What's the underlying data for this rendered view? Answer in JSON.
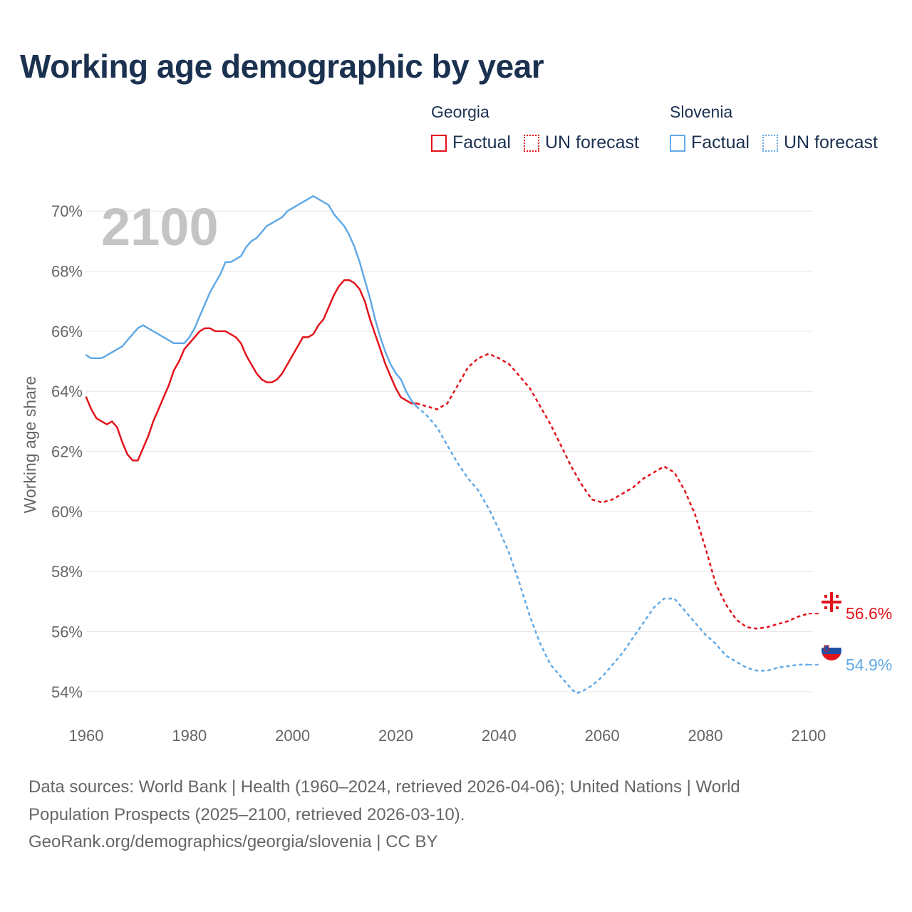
{
  "title": "Working age demographic by year",
  "legend": {
    "groups": [
      {
        "name": "Georgia",
        "color": "#e3131b",
        "items": [
          {
            "label": "Factual",
            "style": "solid"
          },
          {
            "label": "UN forecast",
            "style": "dotted"
          }
        ]
      },
      {
        "name": "Slovenia",
        "color": "#62a9e6",
        "items": [
          {
            "label": "Factual",
            "style": "solid"
          },
          {
            "label": "UN forecast",
            "style": "dotted"
          }
        ]
      }
    ]
  },
  "chart_data": {
    "type": "line",
    "title": "Working age demographic by year",
    "xlabel": "",
    "ylabel": "Working age share",
    "year_display": "2100",
    "xlim": [
      1960,
      2105
    ],
    "ylim": [
      53,
      71.5
    ],
    "x_ticks": [
      1960,
      1980,
      2000,
      2020,
      2040,
      2060,
      2080,
      2100
    ],
    "y_ticks": [
      54,
      56,
      58,
      60,
      62,
      64,
      66,
      68,
      70
    ],
    "y_tick_labels": [
      "54%",
      "56%",
      "58%",
      "60%",
      "62%",
      "64%",
      "66%",
      "68%",
      "70%"
    ],
    "grid": "horizontal",
    "factual_until": 2024,
    "series": [
      {
        "name": "Georgia",
        "color": "#e3131b",
        "end_label": "56.6%",
        "end_icon": "georgia-flag-icon",
        "points": [
          [
            1960,
            63.8
          ],
          [
            1961,
            63.4
          ],
          [
            1962,
            63.1
          ],
          [
            1963,
            63.0
          ],
          [
            1964,
            62.9
          ],
          [
            1965,
            63.0
          ],
          [
            1966,
            62.8
          ],
          [
            1967,
            62.3
          ],
          [
            1968,
            61.9
          ],
          [
            1969,
            61.7
          ],
          [
            1970,
            61.7
          ],
          [
            1971,
            62.1
          ],
          [
            1972,
            62.5
          ],
          [
            1973,
            63.0
          ],
          [
            1974,
            63.4
          ],
          [
            1975,
            63.8
          ],
          [
            1976,
            64.2
          ],
          [
            1977,
            64.7
          ],
          [
            1978,
            65.0
          ],
          [
            1979,
            65.4
          ],
          [
            1980,
            65.6
          ],
          [
            1981,
            65.8
          ],
          [
            1982,
            66.0
          ],
          [
            1983,
            66.1
          ],
          [
            1984,
            66.1
          ],
          [
            1985,
            66.0
          ],
          [
            1986,
            66.0
          ],
          [
            1987,
            66.0
          ],
          [
            1988,
            65.9
          ],
          [
            1989,
            65.8
          ],
          [
            1990,
            65.6
          ],
          [
            1991,
            65.2
          ],
          [
            1992,
            64.9
          ],
          [
            1993,
            64.6
          ],
          [
            1994,
            64.4
          ],
          [
            1995,
            64.3
          ],
          [
            1996,
            64.3
          ],
          [
            1997,
            64.4
          ],
          [
            1998,
            64.6
          ],
          [
            1999,
            64.9
          ],
          [
            2000,
            65.2
          ],
          [
            2001,
            65.5
          ],
          [
            2002,
            65.8
          ],
          [
            2003,
            65.8
          ],
          [
            2004,
            65.9
          ],
          [
            2005,
            66.2
          ],
          [
            2006,
            66.4
          ],
          [
            2007,
            66.8
          ],
          [
            2008,
            67.2
          ],
          [
            2009,
            67.5
          ],
          [
            2010,
            67.7
          ],
          [
            2011,
            67.7
          ],
          [
            2012,
            67.6
          ],
          [
            2013,
            67.4
          ],
          [
            2014,
            67.0
          ],
          [
            2015,
            66.4
          ],
          [
            2016,
            65.9
          ],
          [
            2017,
            65.4
          ],
          [
            2018,
            64.9
          ],
          [
            2019,
            64.5
          ],
          [
            2020,
            64.1
          ],
          [
            2021,
            63.8
          ],
          [
            2022,
            63.7
          ],
          [
            2023,
            63.6
          ],
          [
            2024,
            63.6
          ],
          [
            2026,
            63.5
          ],
          [
            2028,
            63.4
          ],
          [
            2030,
            63.6
          ],
          [
            2032,
            64.2
          ],
          [
            2034,
            64.8
          ],
          [
            2036,
            65.1
          ],
          [
            2038,
            65.25
          ],
          [
            2040,
            65.1
          ],
          [
            2042,
            64.9
          ],
          [
            2044,
            64.5
          ],
          [
            2046,
            64.1
          ],
          [
            2048,
            63.5
          ],
          [
            2050,
            62.9
          ],
          [
            2052,
            62.2
          ],
          [
            2054,
            61.5
          ],
          [
            2056,
            60.9
          ],
          [
            2058,
            60.4
          ],
          [
            2060,
            60.3
          ],
          [
            2062,
            60.4
          ],
          [
            2064,
            60.6
          ],
          [
            2066,
            60.8
          ],
          [
            2068,
            61.1
          ],
          [
            2070,
            61.3
          ],
          [
            2072,
            61.5
          ],
          [
            2074,
            61.3
          ],
          [
            2076,
            60.7
          ],
          [
            2078,
            59.9
          ],
          [
            2080,
            58.8
          ],
          [
            2082,
            57.6
          ],
          [
            2084,
            56.9
          ],
          [
            2086,
            56.4
          ],
          [
            2088,
            56.15
          ],
          [
            2090,
            56.1
          ],
          [
            2092,
            56.15
          ],
          [
            2094,
            56.25
          ],
          [
            2096,
            56.35
          ],
          [
            2098,
            56.5
          ],
          [
            2100,
            56.6
          ]
        ]
      },
      {
        "name": "Slovenia",
        "color": "#62a9e6",
        "end_label": "54.9%",
        "end_icon": "slovenia-flag-icon",
        "points": [
          [
            1960,
            65.2
          ],
          [
            1961,
            65.1
          ],
          [
            1962,
            65.1
          ],
          [
            1963,
            65.1
          ],
          [
            1964,
            65.2
          ],
          [
            1965,
            65.3
          ],
          [
            1966,
            65.4
          ],
          [
            1967,
            65.5
          ],
          [
            1968,
            65.7
          ],
          [
            1969,
            65.9
          ],
          [
            1970,
            66.1
          ],
          [
            1971,
            66.2
          ],
          [
            1972,
            66.1
          ],
          [
            1973,
            66.0
          ],
          [
            1974,
            65.9
          ],
          [
            1975,
            65.8
          ],
          [
            1976,
            65.7
          ],
          [
            1977,
            65.6
          ],
          [
            1978,
            65.6
          ],
          [
            1979,
            65.6
          ],
          [
            1980,
            65.8
          ],
          [
            1981,
            66.1
          ],
          [
            1982,
            66.5
          ],
          [
            1983,
            66.9
          ],
          [
            1984,
            67.3
          ],
          [
            1985,
            67.6
          ],
          [
            1986,
            67.9
          ],
          [
            1987,
            68.3
          ],
          [
            1988,
            68.3
          ],
          [
            1989,
            68.4
          ],
          [
            1990,
            68.5
          ],
          [
            1991,
            68.8
          ],
          [
            1992,
            69.0
          ],
          [
            1993,
            69.1
          ],
          [
            1994,
            69.3
          ],
          [
            1995,
            69.5
          ],
          [
            1996,
            69.6
          ],
          [
            1997,
            69.7
          ],
          [
            1998,
            69.8
          ],
          [
            1999,
            70.0
          ],
          [
            2000,
            70.1
          ],
          [
            2001,
            70.2
          ],
          [
            2002,
            70.3
          ],
          [
            2003,
            70.4
          ],
          [
            2004,
            70.5
          ],
          [
            2005,
            70.4
          ],
          [
            2006,
            70.3
          ],
          [
            2007,
            70.2
          ],
          [
            2008,
            69.9
          ],
          [
            2009,
            69.7
          ],
          [
            2010,
            69.5
          ],
          [
            2011,
            69.2
          ],
          [
            2012,
            68.8
          ],
          [
            2013,
            68.3
          ],
          [
            2014,
            67.7
          ],
          [
            2015,
            67.1
          ],
          [
            2016,
            66.4
          ],
          [
            2017,
            65.8
          ],
          [
            2018,
            65.3
          ],
          [
            2019,
            64.9
          ],
          [
            2020,
            64.6
          ],
          [
            2021,
            64.4
          ],
          [
            2022,
            64.0
          ],
          [
            2023,
            63.7
          ],
          [
            2024,
            63.5
          ],
          [
            2026,
            63.2
          ],
          [
            2028,
            62.8
          ],
          [
            2030,
            62.2
          ],
          [
            2032,
            61.6
          ],
          [
            2034,
            61.1
          ],
          [
            2036,
            60.7
          ],
          [
            2038,
            60.1
          ],
          [
            2040,
            59.4
          ],
          [
            2042,
            58.6
          ],
          [
            2044,
            57.6
          ],
          [
            2046,
            56.5
          ],
          [
            2048,
            55.6
          ],
          [
            2050,
            54.9
          ],
          [
            2052,
            54.5
          ],
          [
            2054,
            54.1
          ],
          [
            2055,
            53.95
          ],
          [
            2056,
            54.0
          ],
          [
            2058,
            54.2
          ],
          [
            2060,
            54.5
          ],
          [
            2062,
            54.9
          ],
          [
            2064,
            55.3
          ],
          [
            2066,
            55.8
          ],
          [
            2068,
            56.3
          ],
          [
            2070,
            56.8
          ],
          [
            2072,
            57.1
          ],
          [
            2074,
            57.1
          ],
          [
            2076,
            56.7
          ],
          [
            2078,
            56.3
          ],
          [
            2080,
            55.9
          ],
          [
            2082,
            55.6
          ],
          [
            2084,
            55.2
          ],
          [
            2086,
            55.0
          ],
          [
            2088,
            54.8
          ],
          [
            2090,
            54.7
          ],
          [
            2092,
            54.7
          ],
          [
            2094,
            54.8
          ],
          [
            2096,
            54.85
          ],
          [
            2098,
            54.9
          ],
          [
            2100,
            54.9
          ]
        ]
      }
    ]
  },
  "footer": {
    "line1": "Data sources: World Bank | Health (1960–2024, retrieved 2026-04-06); United Nations | World",
    "line2": "Population Prospects (2025–2100, retrieved 2026-03-10).",
    "line3": "GeoRank.org/demographics/georgia/slovenia | CC BY"
  }
}
